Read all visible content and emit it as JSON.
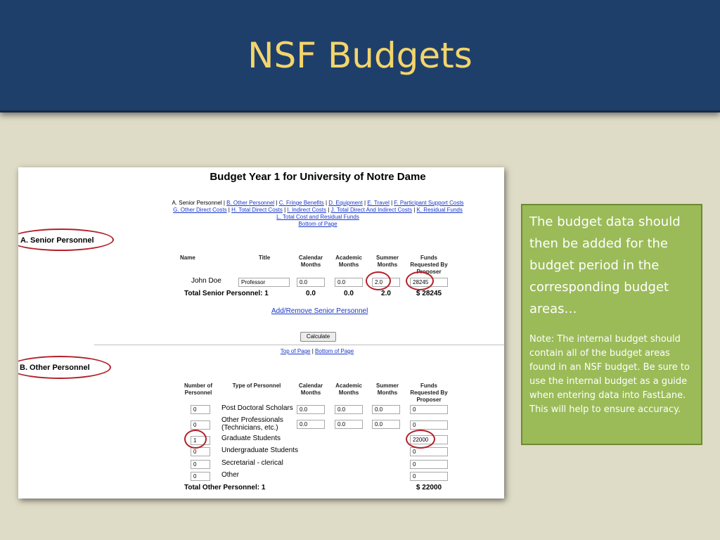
{
  "slide": {
    "title": "NSF Budgets"
  },
  "budget": {
    "heading": "Budget Year 1 for University of Notre Dame",
    "nav_links": [
      "A. Senior Personnel",
      "B. Other Personnel",
      "C. Fringe Benefits",
      "D. Equipment",
      "E. Travel",
      "F. Participant Support Costs",
      "G. Other Direct Costs",
      "H. Total Direct Costs",
      "I. Indirect Costs",
      "J. Total Direct And Indirect Costs",
      "K. Residual Funds",
      "L. Total Cost and Residual Funds",
      "Bottom of Page"
    ],
    "senior": {
      "section_label": "A. Senior Personnel",
      "headers": {
        "name": "Name",
        "title": "Title",
        "calendar": "Calendar Months",
        "academic": "Academic Months",
        "summer": "Summer Months",
        "funds": "Funds Requested By Proposer"
      },
      "row": {
        "name": "John Doe",
        "title": "Professor",
        "calendar": "0.0",
        "academic": "0.0",
        "summer": "2.0",
        "funds": "28245"
      },
      "total": {
        "label": "Total Senior Personnel: 1",
        "calendar": "0.0",
        "academic": "0.0",
        "summer": "2.0",
        "funds": "$ 28245"
      },
      "add_remove_link": "Add/Remove Senior Personnel"
    },
    "calculate_button": "Calculate",
    "page_links": {
      "top": "Top of Page",
      "separator": "|",
      "bottom": "Bottom of Page"
    },
    "other": {
      "section_label": "B. Other Personnel",
      "headers": {
        "number": "Number of Personnel",
        "type": "Type of Personnel",
        "calendar": "Calendar Months",
        "academic": "Academic Months",
        "summer": "Summer Months",
        "funds": "Funds Requested By Proposer"
      },
      "rows": [
        {
          "number": "0",
          "type": "Post Doctoral Scholars",
          "calendar": "0.0",
          "academic": "0.0",
          "summer": "0.0",
          "funds": "0"
        },
        {
          "number": "0",
          "type": "Other Professionals (Technicians, etc.)",
          "calendar": "0.0",
          "academic": "0.0",
          "summer": "0.0",
          "funds": "0"
        },
        {
          "number": "1",
          "type": "Graduate Students",
          "funds": "22000"
        },
        {
          "number": "0",
          "type": "Undergraduate Students",
          "funds": "0"
        },
        {
          "number": "0",
          "type": "Secretarial - clerical",
          "funds": "0"
        },
        {
          "number": "0",
          "type": "Other",
          "funds": "0"
        }
      ],
      "total": {
        "label": "Total Other Personnel: 1",
        "funds": "$ 22000"
      }
    }
  },
  "note": {
    "main": "The budget data should then be added for the budget period in the corresponding budget areas…",
    "sub": "Note:  The internal budget should contain all of the budget areas found in an NSF budget.  Be sure to use the  internal budget as a guide when entering data into FastLane.  This will help to ensure accuracy."
  },
  "colors": {
    "title_bar": "#1f3f6b",
    "title_text": "#f3d56a",
    "background": "#dedbc6",
    "note_box": "#9bbb59",
    "highlight_oval": "#b31f2a",
    "link": "#1a37c8"
  }
}
